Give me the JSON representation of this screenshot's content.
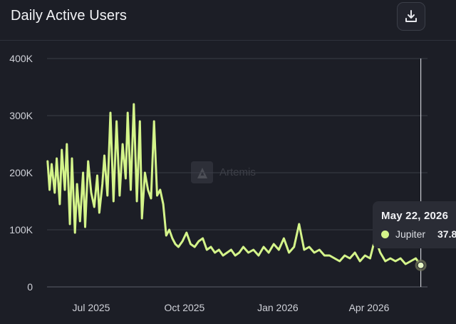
{
  "header": {
    "title": "Daily Active Users",
    "download_icon": "download-icon"
  },
  "watermark": {
    "text": "Artemis",
    "icon": "artemis-logo"
  },
  "tooltip": {
    "date": "May 22, 2026",
    "series": "Jupiter",
    "value": "37.8"
  },
  "colors": {
    "background": "#1c1e26",
    "line": "#d4f48a",
    "grid": "#3a3d47",
    "tooltip_bg": "#2a2c35"
  },
  "chart_data": {
    "type": "line",
    "title": "Daily Active Users",
    "xlabel": "",
    "ylabel": "",
    "ylim": [
      0,
      400000
    ],
    "yticks": [
      0,
      100000,
      200000,
      300000,
      400000
    ],
    "ytick_labels": [
      "0",
      "100K",
      "200K",
      "300K",
      "400K"
    ],
    "xticks": [
      "2025-07-01",
      "2025-10-01",
      "2026-01-01",
      "2026-04-01"
    ],
    "xtick_labels": [
      "Jul 2025",
      "Oct 2025",
      "Jan 2026",
      "Apr 2026"
    ],
    "grid": true,
    "legend": "none",
    "hover_date": "2026-05-22",
    "series": [
      {
        "name": "Jupiter",
        "color": "#d4f48a",
        "x": [
          "2025-05-19",
          "2025-05-21",
          "2025-05-23",
          "2025-05-26",
          "2025-05-28",
          "2025-05-31",
          "2025-06-02",
          "2025-06-05",
          "2025-06-07",
          "2025-06-10",
          "2025-06-12",
          "2025-06-15",
          "2025-06-17",
          "2025-06-20",
          "2025-06-23",
          "2025-06-25",
          "2025-06-28",
          "2025-07-01",
          "2025-07-04",
          "2025-07-07",
          "2025-07-09",
          "2025-07-12",
          "2025-07-14",
          "2025-07-17",
          "2025-07-20",
          "2025-07-23",
          "2025-07-26",
          "2025-07-29",
          "2025-08-01",
          "2025-08-04",
          "2025-08-06",
          "2025-08-09",
          "2025-08-12",
          "2025-08-15",
          "2025-08-18",
          "2025-08-20",
          "2025-08-23",
          "2025-08-26",
          "2025-08-29",
          "2025-09-01",
          "2025-09-04",
          "2025-09-07",
          "2025-09-10",
          "2025-09-13",
          "2025-09-16",
          "2025-09-19",
          "2025-09-22",
          "2025-09-25",
          "2025-09-29",
          "2025-10-03",
          "2025-10-07",
          "2025-10-11",
          "2025-10-15",
          "2025-10-19",
          "2025-10-23",
          "2025-10-27",
          "2025-10-31",
          "2025-11-04",
          "2025-11-08",
          "2025-11-12",
          "2025-11-16",
          "2025-11-20",
          "2025-11-24",
          "2025-11-28",
          "2025-12-03",
          "2025-12-08",
          "2025-12-13",
          "2025-12-18",
          "2025-12-23",
          "2025-12-28",
          "2026-01-02",
          "2026-01-07",
          "2026-01-12",
          "2026-01-17",
          "2026-01-22",
          "2026-01-27",
          "2026-02-01",
          "2026-02-06",
          "2026-02-11",
          "2026-02-16",
          "2026-02-21",
          "2026-02-26",
          "2026-03-03",
          "2026-03-08",
          "2026-03-13",
          "2026-03-18",
          "2026-03-23",
          "2026-03-28",
          "2026-04-02",
          "2026-04-07",
          "2026-04-12",
          "2026-04-17",
          "2026-04-22",
          "2026-04-27",
          "2026-05-02",
          "2026-05-07",
          "2026-05-12",
          "2026-05-17",
          "2026-05-22"
        ],
        "values": [
          220000,
          170000,
          215000,
          165000,
          225000,
          145000,
          240000,
          170000,
          250000,
          110000,
          225000,
          95000,
          180000,
          115000,
          200000,
          105000,
          220000,
          165000,
          140000,
          195000,
          130000,
          180000,
          230000,
          160000,
          305000,
          150000,
          290000,
          160000,
          250000,
          190000,
          305000,
          170000,
          320000,
          150000,
          290000,
          120000,
          200000,
          170000,
          155000,
          290000,
          160000,
          170000,
          145000,
          90000,
          100000,
          85000,
          75000,
          70000,
          80000,
          95000,
          75000,
          70000,
          80000,
          85000,
          65000,
          70000,
          60000,
          65000,
          55000,
          60000,
          65000,
          55000,
          60000,
          70000,
          60000,
          65000,
          55000,
          70000,
          60000,
          75000,
          65000,
          85000,
          60000,
          70000,
          110000,
          65000,
          70000,
          60000,
          65000,
          55000,
          55000,
          50000,
          45000,
          55000,
          50000,
          60000,
          45000,
          55000,
          50000,
          85000,
          60000,
          45000,
          50000,
          45000,
          50000,
          40000,
          45000,
          50000,
          37800
        ]
      }
    ]
  }
}
